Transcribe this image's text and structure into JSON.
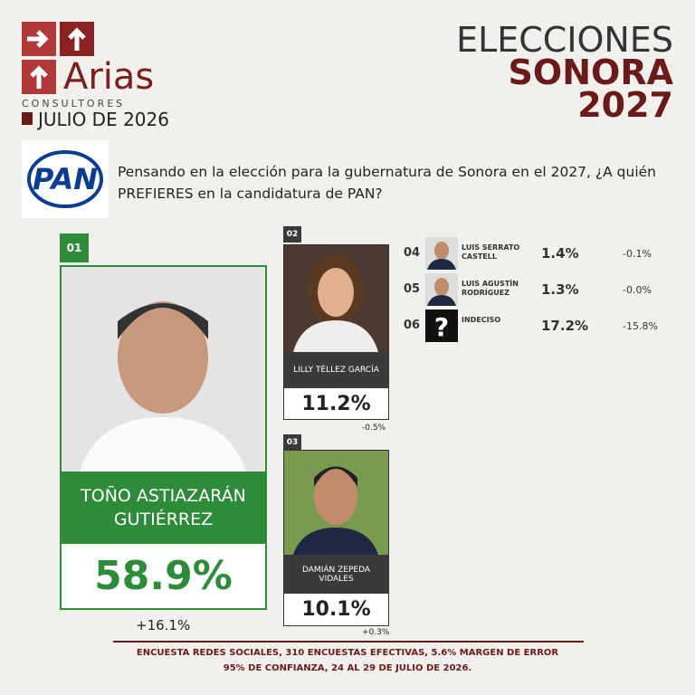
{
  "header": {
    "brand": "Arias",
    "brand_sub": "CONSULTORES",
    "date": "JULIO DE 2026",
    "title_line1": "ELECCIONES",
    "title_line2": "SONORA",
    "title_line3": "2027"
  },
  "party": "PAN",
  "question": "Pensando en la elección para la gubernatura de Sonora en el 2027, ¿A quién PREFIERES en la candidatura de PAN?",
  "candidates": [
    {
      "rank": "01",
      "name": "TOÑO ASTIAZARÁN GUTIÉRREZ",
      "percent": "58.9%",
      "change": "+16.1%"
    },
    {
      "rank": "02",
      "name": "LILLY TÉLLEZ GARCÍA",
      "percent": "11.2%",
      "change": "-0.5%"
    },
    {
      "rank": "03",
      "name": "DAMIÁN ZEPEDA VIDALES",
      "percent": "10.1%",
      "change": "+0.3%"
    },
    {
      "rank": "04",
      "name": "LUIS SERRATO CASTELL",
      "percent": "1.4%",
      "change": "-0.1%"
    },
    {
      "rank": "05",
      "name": "LUIS AGUSTÍN RODRÍGUEZ",
      "percent": "1.3%",
      "change": "-0.0%"
    },
    {
      "rank": "06",
      "name": "INDECISO",
      "percent": "17.2%",
      "change": "-15.8%"
    }
  ],
  "footer": {
    "line1": "ENCUESTA REDES SOCIALES, 310 ENCUESTAS EFECTIVAS, 5.6%  MARGEN DE ERROR",
    "line2": "95% DE CONFIANZA, 24 AL 29 DE JULIO DE 2026."
  }
}
